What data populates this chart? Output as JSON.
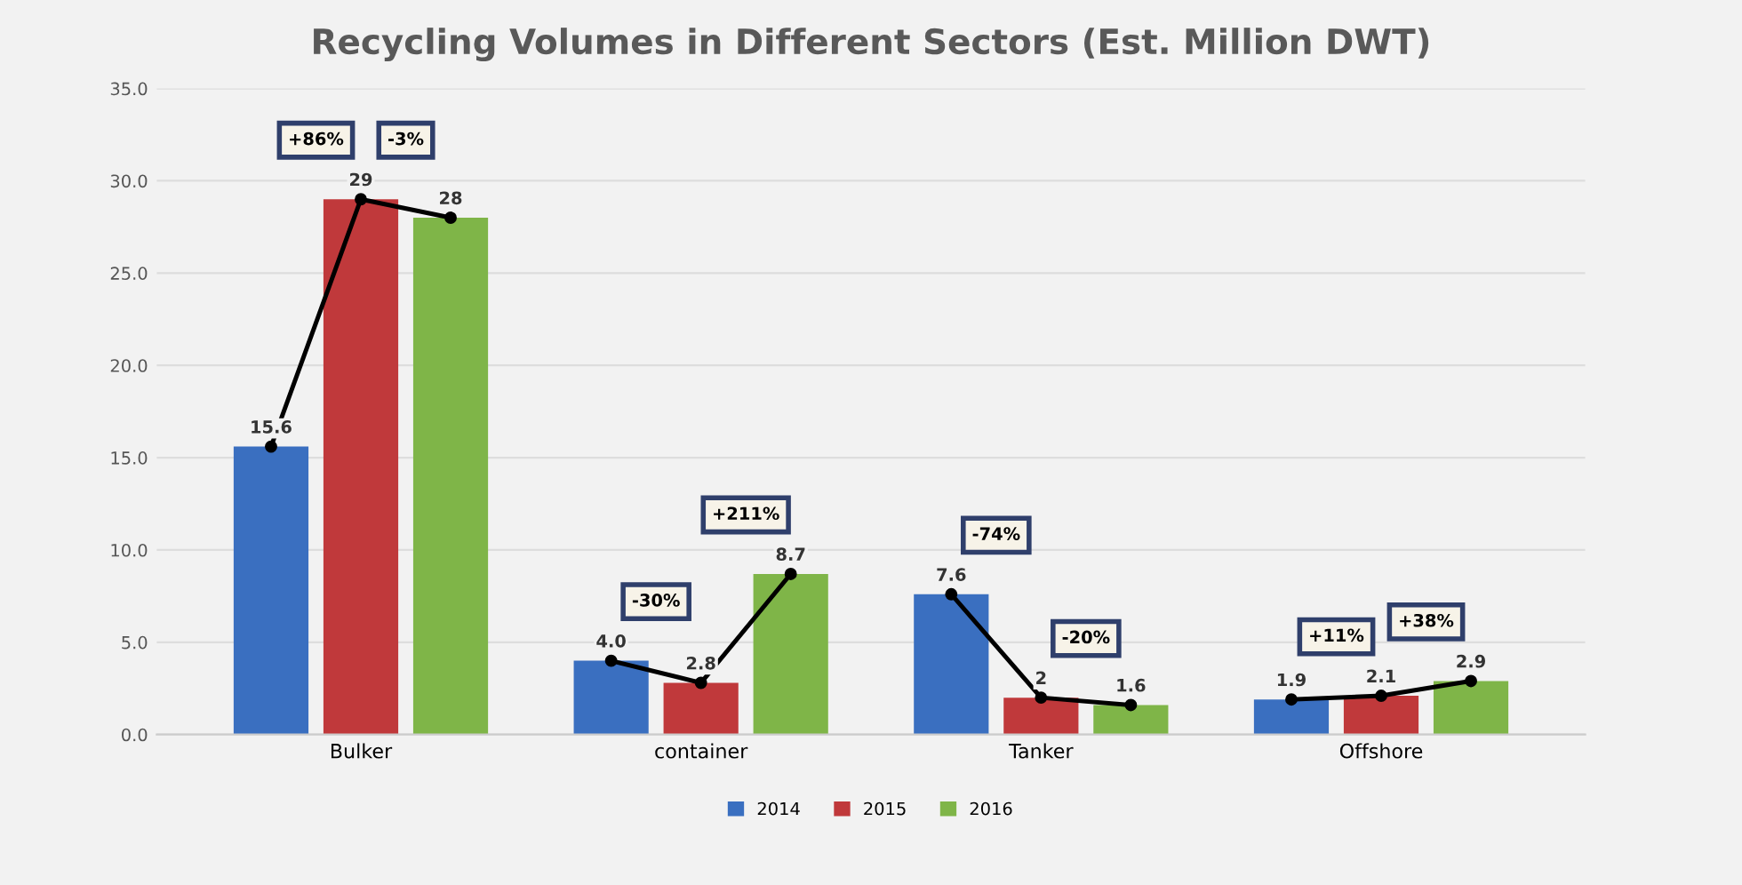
{
  "chart_data": {
    "type": "bar",
    "title": "Recycling Volumes in Different Sectors (Est. Million DWT)",
    "categories": [
      "Bulker",
      "container",
      "Tanker",
      "Offshore"
    ],
    "series": [
      {
        "name": "2014",
        "color": "#3a6fc0",
        "values": [
          15.6,
          4.0,
          7.6,
          1.9
        ],
        "value_labels": [
          "15.6",
          "4.0",
          "7.6",
          "1.9"
        ]
      },
      {
        "name": "2015",
        "color": "#c0393b",
        "values": [
          29,
          2.8,
          2,
          2.1
        ],
        "value_labels": [
          "29",
          "2.8",
          "2",
          "2.1"
        ]
      },
      {
        "name": "2016",
        "color": "#7fb548",
        "values": [
          28,
          8.7,
          1.6,
          2.9
        ],
        "value_labels": [
          "28",
          "8.7",
          "1.6",
          "2.9"
        ]
      }
    ],
    "ylim": [
      0,
      35
    ],
    "yticks": [
      {
        "value": 0,
        "label": "0.0"
      },
      {
        "value": 5,
        "label": "5.0"
      },
      {
        "value": 10,
        "label": "10.0"
      },
      {
        "value": 15,
        "label": "15.0"
      },
      {
        "value": 20,
        "label": "20.0"
      },
      {
        "value": 25,
        "label": "25.0"
      },
      {
        "value": 30,
        "label": "30.0"
      },
      {
        "value": 35,
        "label": "35.0"
      }
    ],
    "grid": "y",
    "legend": "bottom",
    "marker": "circle",
    "line_style": "solid",
    "annotations": [
      "+86%",
      "-3%",
      "-30%",
      "+211%",
      "-74%",
      "-20%",
      "+11%",
      "+38%"
    ]
  }
}
